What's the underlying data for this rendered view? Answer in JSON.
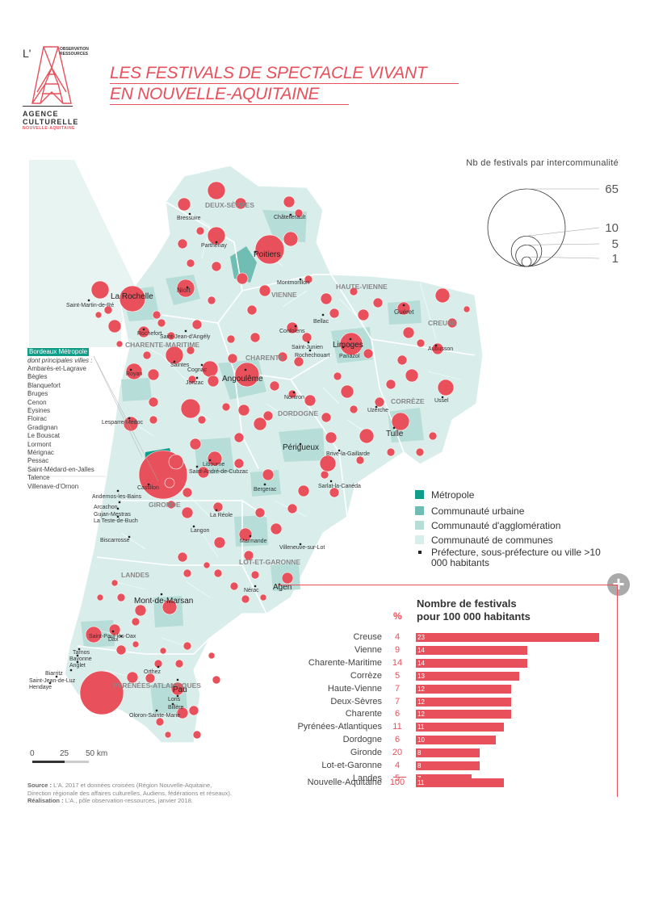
{
  "header": {
    "logo_letter": "L'",
    "logo_obs_line1": "OBSERVATION",
    "logo_obs_line2": "RESSOURCES",
    "agency_line1": "AGENCE",
    "agency_line2": "CULTURELLE",
    "agency_line3": "NOUVELLE-AQUITAINE",
    "title_line1": "LES FESTIVALS DE SPECTACLE VIVANT",
    "title_line2": "EN NOUVELLE-AQUITAINE"
  },
  "size_legend": {
    "title": "Nb de festivals par intercommunalité",
    "values": [
      65,
      10,
      5,
      1
    ],
    "labels": [
      "65",
      "10",
      "5",
      "1"
    ]
  },
  "metropole_box": {
    "title": "Bordeaux Métropole",
    "subtitle": "dont principales villes :",
    "cities": [
      "Ambarès-et-Lagrave",
      "Bègles",
      "Blanquefort",
      "Bruges",
      "Cenon",
      "Eysines",
      "Floirac",
      "Gradignan",
      "Le Bouscat",
      "Lormont",
      "Mérignac",
      "Pessac",
      "Saint-Médard-en-Jalles",
      "Talence",
      "Villenave-d'Ornon"
    ]
  },
  "type_legend": {
    "items": [
      {
        "label": "Métropole",
        "color": "#0f9d8a"
      },
      {
        "label": "Communauté urbaine",
        "color": "#6fbdb3"
      },
      {
        "label": "Communauté d'agglomération",
        "color": "#b6ddd7"
      },
      {
        "label": "Communauté de communes",
        "color": "#d9eeeb"
      }
    ],
    "city_marker_label": "Préfecture, sous-préfecture ou ville >10 000 habitants"
  },
  "map": {
    "departments": [
      {
        "name": "DEUX-SÈVRES"
      },
      {
        "name": "VIENNE"
      },
      {
        "name": "HAUTE-VIENNE"
      },
      {
        "name": "CREUSE"
      },
      {
        "name": "CHARENTE-MARITIME"
      },
      {
        "name": "CHARENTE"
      },
      {
        "name": "CORRÈZE"
      },
      {
        "name": "DORDOGNE"
      },
      {
        "name": "GIRONDE"
      },
      {
        "name": "LOT-ET-GARONNE"
      },
      {
        "name": "LANDES"
      },
      {
        "name": "PYRÉNÉES-ATLANTIQUES"
      }
    ],
    "major_cities": [
      "La Rochelle",
      "Poitiers",
      "Limoges",
      "Angoulême",
      "Niort",
      "Périgueux",
      "Tulle",
      "Guéret",
      "Pau",
      "Mont-de-Marsan",
      "Agen"
    ],
    "cities": [
      "Bressuire",
      "Châtellerault",
      "Parthenay",
      "Montmorillon",
      "Bellac",
      "Saint-Martin-de-Ré",
      "Rochefort",
      "Saint-Jean-d'Angély",
      "Confolens",
      "Saint-Junien",
      "Rochechouart",
      "Panazol",
      "Aubusson",
      "Saintes",
      "Cognac",
      "Royan",
      "Jonzac",
      "Nontron",
      "Ussel",
      "Uzerche",
      "Lesparre-Médoc",
      "Brive-la-Gaillarde",
      "Libourne",
      "Saint-André-de-Cubzac",
      "Castillon",
      "Bergerac",
      "Sarlat-la-Canéda",
      "Andernos-les-Bains",
      "Arcachon",
      "Gujan-Mestras",
      "La Teste-de-Buch",
      "La Réole",
      "Langon",
      "Biscarrosse",
      "Marmande",
      "Villeneuve-sur-Lot",
      "Nérac",
      "Saint-Paul-lès-Dax",
      "Dax",
      "Tarnos",
      "Bayonne",
      "Anglet",
      "Biarritz",
      "Saint-Jean-de-Luz",
      "Hendaye",
      "Orthez",
      "Lons",
      "Billère",
      "Oloron-Sainte-Marie"
    ]
  },
  "scale": {
    "labels": [
      "0",
      "25",
      "50 km"
    ]
  },
  "bar_chart": {
    "title_line1": "Nombre de festivals",
    "title_line2": "pour 100 000 habitants",
    "pct_header": "%",
    "max": 23,
    "rows": [
      {
        "name": "Creuse",
        "pct": "4",
        "value": 23
      },
      {
        "name": "Vienne",
        "pct": "9",
        "value": 14
      },
      {
        "name": "Charente-Maritime",
        "pct": "14",
        "value": 14
      },
      {
        "name": "Corrèze",
        "pct": "5",
        "value": 13
      },
      {
        "name": "Haute-Vienne",
        "pct": "7",
        "value": 12
      },
      {
        "name": "Deux-Sèvres",
        "pct": "7",
        "value": 12
      },
      {
        "name": "Charente",
        "pct": "6",
        "value": 12
      },
      {
        "name": "Pyrénées-Atlantiques",
        "pct": "11",
        "value": 11
      },
      {
        "name": "Dordogne",
        "pct": "6",
        "value": 10
      },
      {
        "name": "Gironde",
        "pct": "20",
        "value": 8
      },
      {
        "name": "Lot-et-Garonne",
        "pct": "4",
        "value": 8
      },
      {
        "name": "Landes",
        "pct": "5",
        "value": 7
      }
    ],
    "total": {
      "name": "Nouvelle-Aquitaine",
      "pct": "100",
      "value": 11
    }
  },
  "source": {
    "label": "Source :",
    "text1": "L'A. 2017 et données croisées (Région Nouvelle-Aquitaine,",
    "text2": "Direction régionale des affaires culturelles, Audiens, fédérations et réseaux).",
    "realisation_label": "Réalisation :",
    "realisation_text": "L'A., pôle observation-ressources, janvier 2018."
  },
  "colors": {
    "accent": "#e8505b",
    "metropole": "#0f9d8a",
    "cu": "#6fbdb3",
    "ca": "#b6ddd7",
    "cc": "#d9eeeb"
  }
}
